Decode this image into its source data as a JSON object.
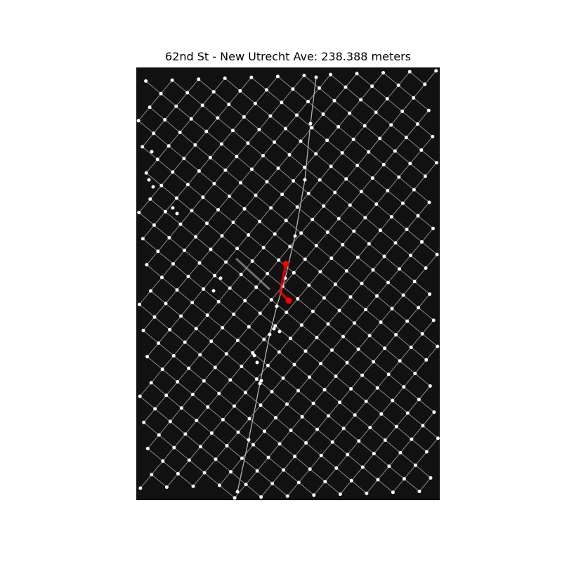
{
  "title": "62nd St - New Utrecht Ave: 238.388 meters",
  "colors": {
    "background": "#111111",
    "street": "#b3b3b3",
    "node": "#ffffff",
    "route": "#ff0000"
  },
  "map": {
    "type": "street-network-shortest-path",
    "origin_street": "62nd St",
    "destination_street": "New Utrecht Ave",
    "route_length_meters": 238.388
  }
}
